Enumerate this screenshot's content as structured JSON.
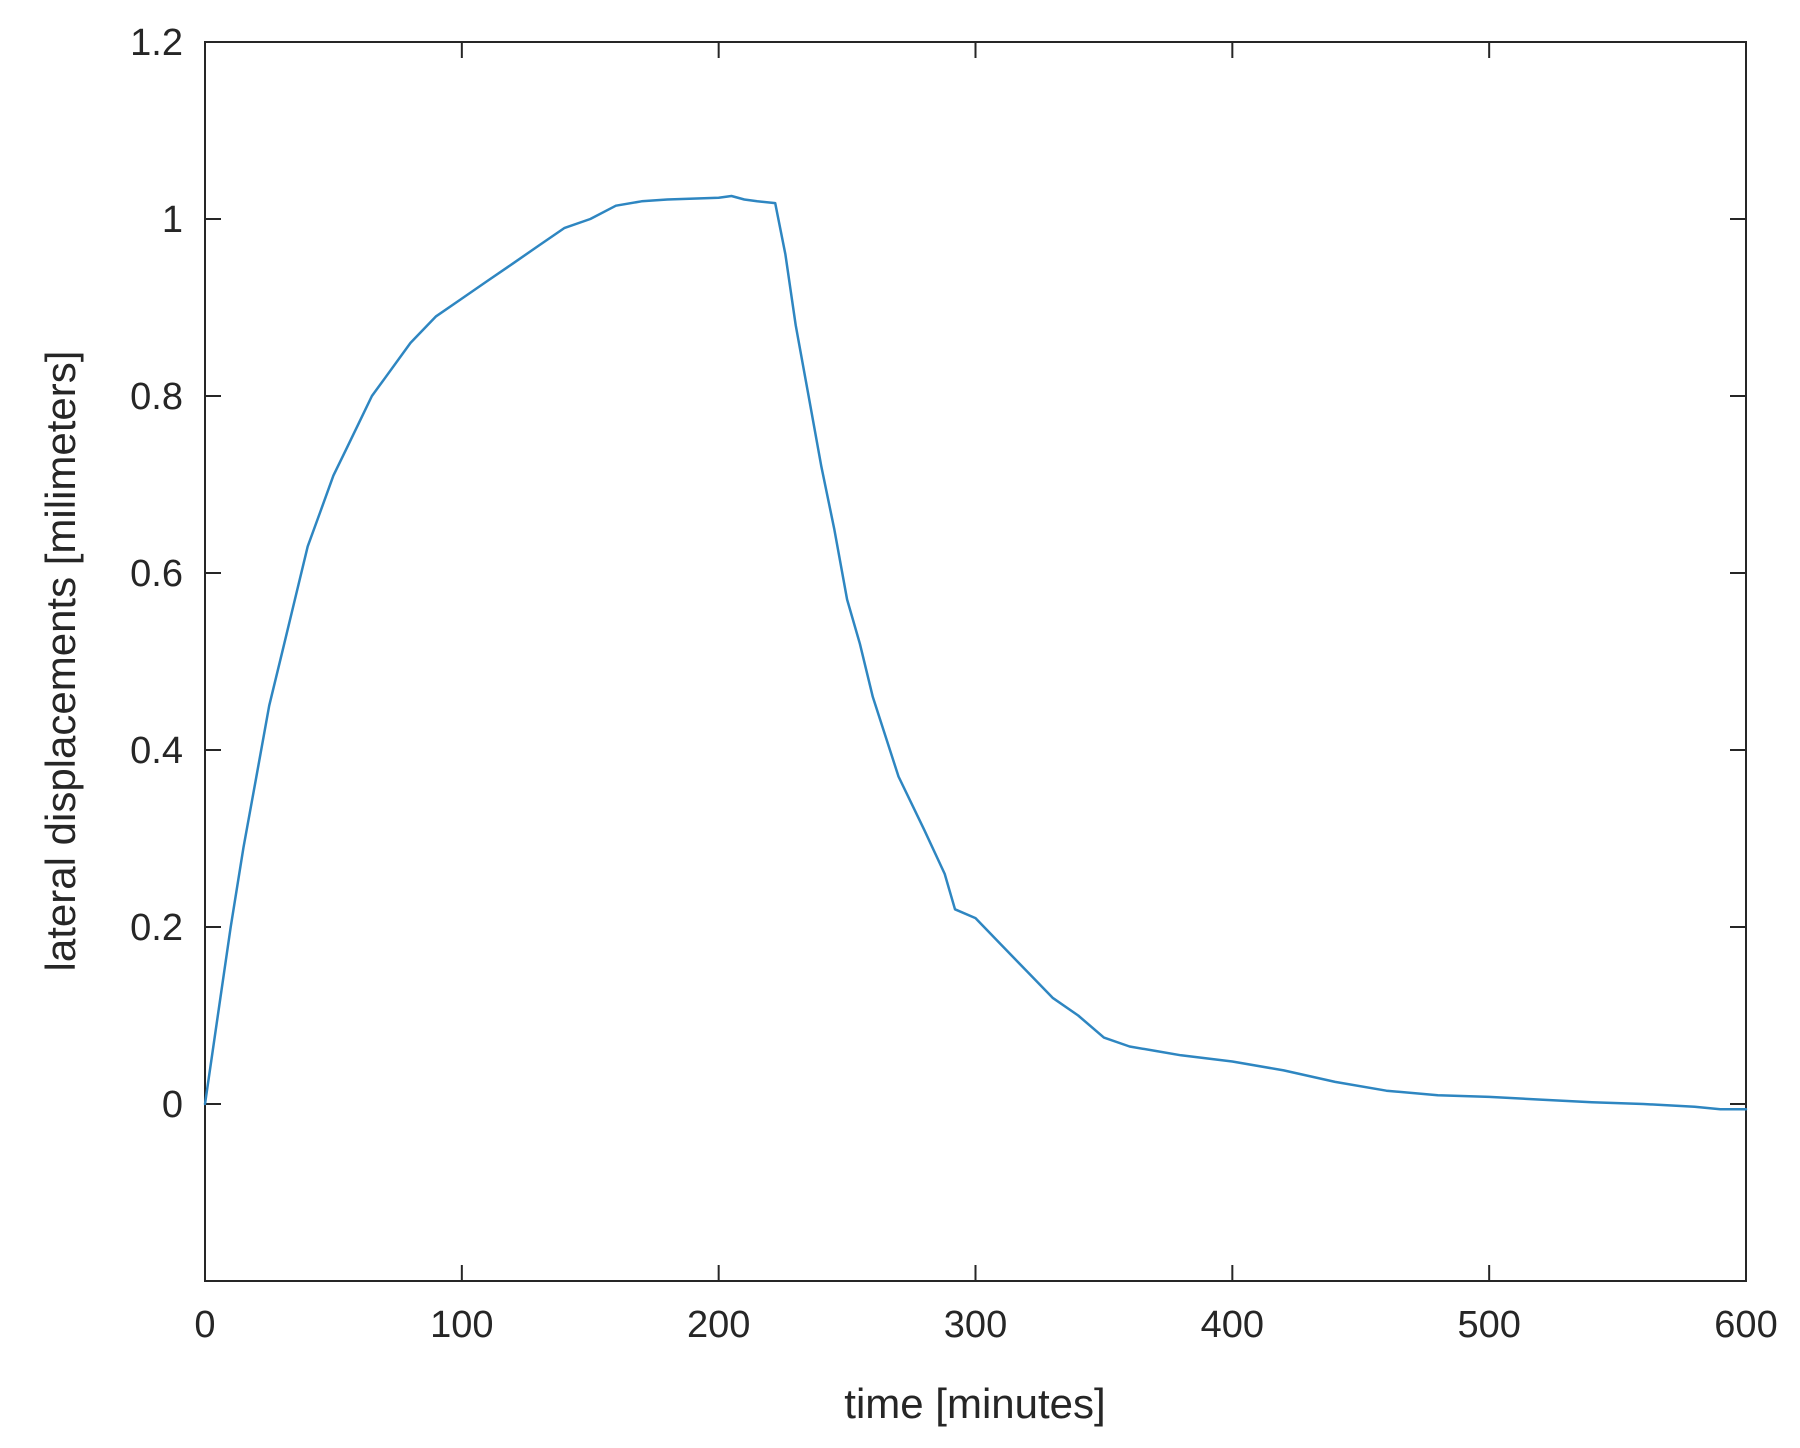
{
  "chart_data": {
    "type": "line",
    "xlabel": "time [minutes]",
    "ylabel": "lateral displacements [milimeters]",
    "xlim": [
      0,
      600
    ],
    "ylim": [
      -0.2,
      1.2
    ],
    "xticks": [
      0,
      100,
      200,
      300,
      400,
      500,
      600
    ],
    "yticks": [
      0,
      0.2,
      0.4,
      0.6,
      0.8,
      1,
      1.2
    ],
    "xtick_labels": [
      "0",
      "100",
      "200",
      "300",
      "400",
      "500",
      "600"
    ],
    "ytick_labels": [
      "0",
      "0.2",
      "0.4",
      "0.6",
      "0.8",
      "1",
      "1.2"
    ],
    "grid": false,
    "line_color": "#2e86c1",
    "series": [
      {
        "x": [
          0,
          3,
          6,
          10,
          15,
          20,
          25,
          30,
          35,
          40,
          45,
          50,
          55,
          60,
          65,
          70,
          80,
          90,
          100,
          110,
          120,
          130,
          140,
          150,
          160,
          170,
          180,
          190,
          200,
          205,
          210,
          215,
          222,
          226,
          230,
          235,
          240,
          245,
          250,
          255,
          260,
          270,
          280,
          288,
          292,
          300,
          310,
          320,
          330,
          340,
          350,
          360,
          370,
          380,
          400,
          420,
          440,
          460,
          480,
          500,
          520,
          540,
          560,
          580,
          590,
          600
        ],
        "y": [
          0.0,
          0.06,
          0.12,
          0.2,
          0.29,
          0.37,
          0.45,
          0.51,
          0.57,
          0.63,
          0.67,
          0.71,
          0.74,
          0.77,
          0.8,
          0.82,
          0.86,
          0.89,
          0.91,
          0.93,
          0.95,
          0.97,
          0.99,
          1.0,
          1.015,
          1.02,
          1.022,
          1.023,
          1.024,
          1.026,
          1.022,
          1.02,
          1.018,
          0.96,
          0.88,
          0.8,
          0.72,
          0.65,
          0.57,
          0.52,
          0.46,
          0.37,
          0.31,
          0.26,
          0.22,
          0.21,
          0.18,
          0.15,
          0.12,
          0.1,
          0.075,
          0.065,
          0.06,
          0.055,
          0.048,
          0.038,
          0.025,
          0.015,
          0.01,
          0.008,
          0.005,
          0.002,
          0.0,
          -0.003,
          -0.006,
          -0.006
        ]
      }
    ]
  }
}
